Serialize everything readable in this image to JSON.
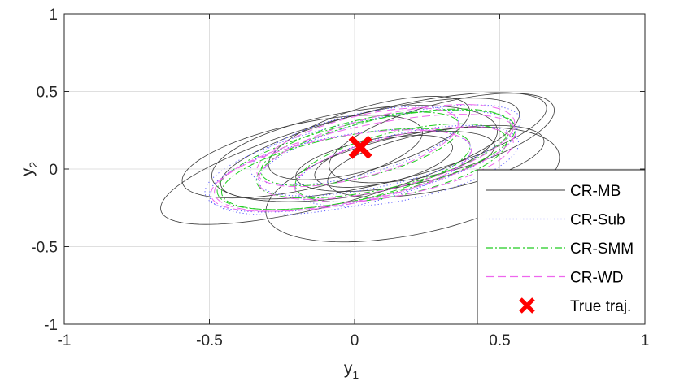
{
  "chart_data": {
    "type": "scatter",
    "xlabel": "y",
    "xlabel_sub": "1",
    "ylabel": "y",
    "ylabel_sub": "2",
    "xlim": [
      -1,
      1
    ],
    "ylim": [
      -1,
      1
    ],
    "xticks": [
      -1,
      -0.5,
      0,
      0.5,
      1
    ],
    "yticks": [
      -1,
      -0.5,
      0,
      0.5,
      1
    ],
    "xtick_labels": [
      "-1",
      "-0.5",
      "0",
      "0.5",
      "1"
    ],
    "ytick_labels": [
      "-1",
      "-0.5",
      "0",
      "0.5",
      "1"
    ],
    "grid": true,
    "legend_position": "bottom-right",
    "series": [
      {
        "name": "CR-MB",
        "style": "solid",
        "color": "#3a3a3a",
        "ellipses": [
          {
            "cx": 0.1,
            "cy": 0.15,
            "a": 0.62,
            "b": 0.22,
            "angle": 27
          },
          {
            "cx": 0.0,
            "cy": 0.1,
            "a": 0.52,
            "b": 0.26,
            "angle": 22
          },
          {
            "cx": -0.05,
            "cy": 0.05,
            "a": 0.7,
            "b": 0.24,
            "angle": 30
          },
          {
            "cx": 0.14,
            "cy": 0.05,
            "a": 0.36,
            "b": 0.16,
            "angle": 20
          },
          {
            "cx": 0.05,
            "cy": 0.2,
            "a": 0.4,
            "b": 0.18,
            "angle": 34
          },
          {
            "cx": 0.28,
            "cy": 0.05,
            "a": 0.4,
            "b": 0.18,
            "angle": 24
          },
          {
            "cx": 0.2,
            "cy": -0.1,
            "a": 0.55,
            "b": 0.3,
            "angle": 28
          },
          {
            "cx": -0.18,
            "cy": 0.08,
            "a": 0.45,
            "b": 0.2,
            "angle": 26
          },
          {
            "cx": 0.3,
            "cy": 0.2,
            "a": 0.44,
            "b": 0.2,
            "angle": 32
          },
          {
            "cx": 0.1,
            "cy": 0.05,
            "a": 0.26,
            "b": 0.13,
            "angle": 28
          }
        ]
      },
      {
        "name": "CR-Sub",
        "style": "dotted",
        "color": "#5a5aff",
        "ellipses": [
          {
            "cx": 0.02,
            "cy": 0.05,
            "a": 0.58,
            "b": 0.24,
            "angle": 25
          },
          {
            "cx": 0.12,
            "cy": 0.12,
            "a": 0.5,
            "b": 0.2,
            "angle": 28
          },
          {
            "cx": -0.05,
            "cy": -0.02,
            "a": 0.48,
            "b": 0.22,
            "angle": 23
          },
          {
            "cx": 0.18,
            "cy": 0.02,
            "a": 0.42,
            "b": 0.2,
            "angle": 27
          },
          {
            "cx": 0.0,
            "cy": 0.15,
            "a": 0.4,
            "b": 0.18,
            "angle": 30
          }
        ]
      },
      {
        "name": "CR-SMM",
        "style": "dashdot",
        "color": "#22cc22",
        "ellipses": [
          {
            "cx": 0.04,
            "cy": 0.06,
            "a": 0.56,
            "b": 0.23,
            "angle": 26
          },
          {
            "cx": 0.1,
            "cy": 0.1,
            "a": 0.48,
            "b": 0.21,
            "angle": 27
          },
          {
            "cx": -0.03,
            "cy": 0.0,
            "a": 0.46,
            "b": 0.2,
            "angle": 24
          },
          {
            "cx": 0.16,
            "cy": 0.04,
            "a": 0.4,
            "b": 0.19,
            "angle": 28
          },
          {
            "cx": 0.02,
            "cy": 0.13,
            "a": 0.38,
            "b": 0.17,
            "angle": 29
          }
        ]
      },
      {
        "name": "CR-WD",
        "style": "dashed",
        "color": "#ee66ee",
        "ellipses": [
          {
            "cx": 0.03,
            "cy": 0.04,
            "a": 0.57,
            "b": 0.22,
            "angle": 25
          },
          {
            "cx": 0.11,
            "cy": 0.11,
            "a": 0.49,
            "b": 0.22,
            "angle": 29
          },
          {
            "cx": -0.04,
            "cy": -0.01,
            "a": 0.47,
            "b": 0.21,
            "angle": 22
          },
          {
            "cx": 0.17,
            "cy": 0.03,
            "a": 0.41,
            "b": 0.18,
            "angle": 26
          },
          {
            "cx": 0.01,
            "cy": 0.14,
            "a": 0.39,
            "b": 0.18,
            "angle": 31
          }
        ]
      },
      {
        "name": "True traj.",
        "style": "marker-x",
        "color": "#ff0000",
        "points": [
          {
            "x": 0.02,
            "y": 0.14
          }
        ]
      }
    ]
  }
}
